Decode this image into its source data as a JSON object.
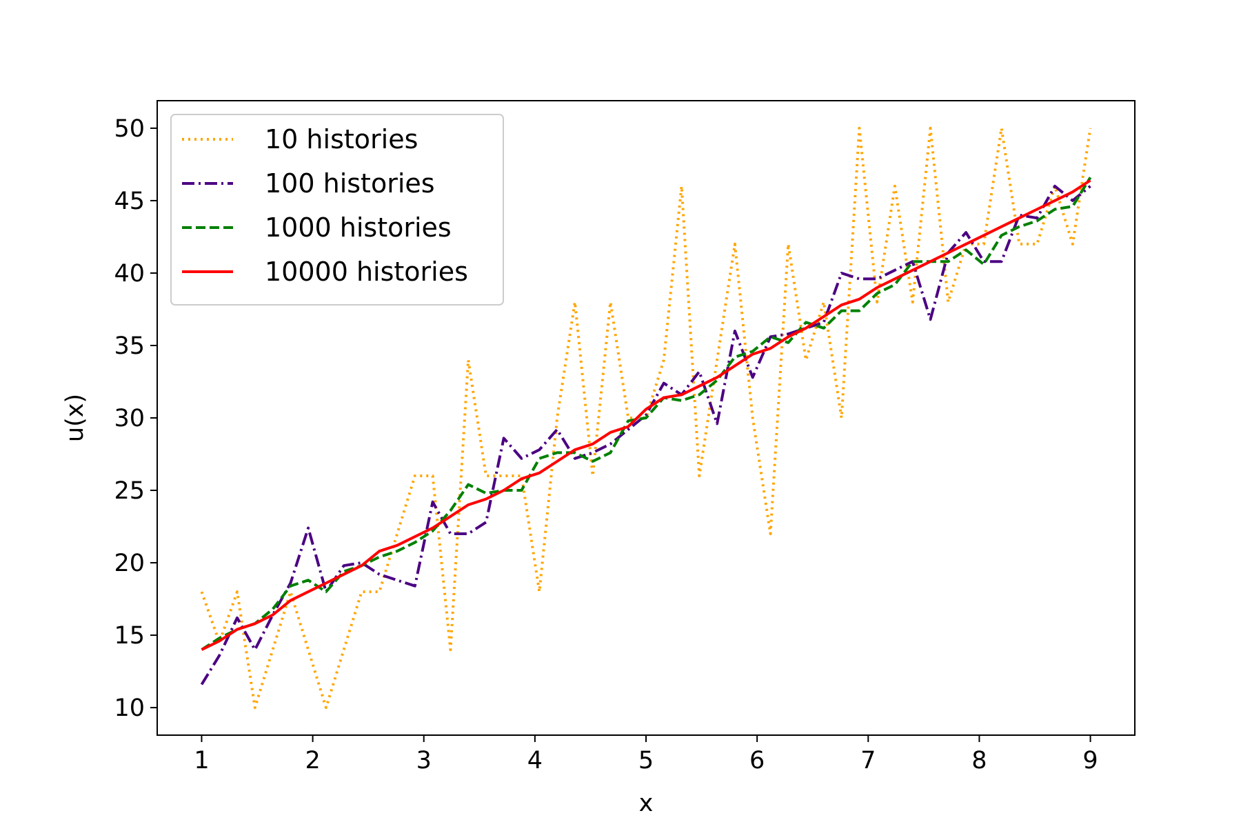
{
  "chart_data": {
    "type": "line",
    "title": "",
    "xlabel": "x",
    "ylabel": "u(x)",
    "xlim": [
      0.6,
      9.4
    ],
    "ylim": [
      8.1,
      51.9
    ],
    "xticks": [
      1,
      2,
      3,
      4,
      5,
      6,
      7,
      8,
      9
    ],
    "yticks": [
      10,
      15,
      20,
      25,
      30,
      35,
      40,
      45,
      50
    ],
    "grid": false,
    "legend_position": "upper left",
    "x": [
      1.0,
      1.16,
      1.32,
      1.48,
      1.64,
      1.8,
      1.96,
      2.12,
      2.28,
      2.44,
      2.6,
      2.76,
      2.92,
      3.08,
      3.24,
      3.4,
      3.56,
      3.72,
      3.88,
      4.04,
      4.2,
      4.36,
      4.52,
      4.68,
      4.84,
      5.0,
      5.16,
      5.32,
      5.48,
      5.64,
      5.8,
      5.96,
      6.12,
      6.28,
      6.44,
      6.6,
      6.76,
      6.92,
      7.08,
      7.24,
      7.4,
      7.56,
      7.72,
      7.88,
      8.04,
      8.2,
      8.36,
      8.52,
      8.68,
      8.84,
      9.0
    ],
    "series": [
      {
        "name": "10 histories",
        "color": "#FFA500",
        "dash": "dotted",
        "values": [
          18,
          14.5,
          18,
          10,
          14,
          18,
          14,
          10,
          14,
          18,
          18,
          22,
          26,
          26,
          14,
          34,
          26,
          26,
          26,
          18,
          30,
          38,
          26,
          38,
          30,
          30,
          34,
          46,
          26,
          34,
          42,
          30,
          22,
          42,
          34,
          38,
          30,
          50,
          38,
          46,
          38,
          50,
          38,
          42,
          42,
          50,
          42,
          42,
          46,
          42,
          50
        ]
      },
      {
        "name": "100 histories",
        "color": "#4B0082",
        "dash": "dashdot",
        "values": [
          11.6,
          13.6,
          16.2,
          14,
          16.4,
          18.6,
          22.4,
          18,
          19.8,
          20,
          19.2,
          18.8,
          18.4,
          24.2,
          22,
          22,
          22.8,
          28.6,
          27.2,
          27.8,
          29.2,
          27.2,
          27.6,
          28.2,
          29.2,
          30.2,
          32.4,
          31.6,
          33.2,
          29.6,
          36,
          32.8,
          35.6,
          35.8,
          36.2,
          36.6,
          40,
          39.6,
          39.6,
          40.2,
          40.8,
          36.8,
          41.4,
          42.8,
          40.8,
          40.8,
          44,
          43.8,
          46,
          45,
          46
        ]
      },
      {
        "name": "1000 histories",
        "color": "#008000",
        "dash": "dashed",
        "values": [
          14,
          14.8,
          15.4,
          15.8,
          16.8,
          18.4,
          18.8,
          18,
          19.4,
          19.8,
          20.4,
          20.8,
          21.4,
          22.2,
          23.6,
          25.4,
          24.8,
          25,
          25,
          27.2,
          27.6,
          27.6,
          27,
          27.6,
          29.8,
          30,
          31.4,
          31.2,
          31.6,
          32.6,
          34.2,
          34.6,
          35.6,
          35.2,
          36.6,
          36.2,
          37.4,
          37.4,
          38.6,
          39.2,
          40.8,
          40.8,
          40.8,
          41.6,
          40.6,
          42.6,
          43.2,
          43.6,
          44.4,
          44.6,
          46.6
        ]
      },
      {
        "name": "10000 histories",
        "color": "#FF0000",
        "dash": "solid",
        "values": [
          14,
          14.6,
          15.4,
          15.8,
          16.4,
          17.4,
          18,
          18.6,
          19.2,
          19.8,
          20.8,
          21.2,
          21.8,
          22.4,
          23.2,
          24,
          24.4,
          25,
          25.8,
          26.2,
          27,
          27.8,
          28.2,
          29,
          29.4,
          30.6,
          31.4,
          31.6,
          32.2,
          32.8,
          33.6,
          34.4,
          34.8,
          35.6,
          36.2,
          37,
          37.8,
          38.2,
          39,
          39.6,
          40.2,
          40.8,
          41.4,
          42,
          42.6,
          43.2,
          43.8,
          44.4,
          45,
          45.6,
          46.4
        ]
      }
    ]
  }
}
